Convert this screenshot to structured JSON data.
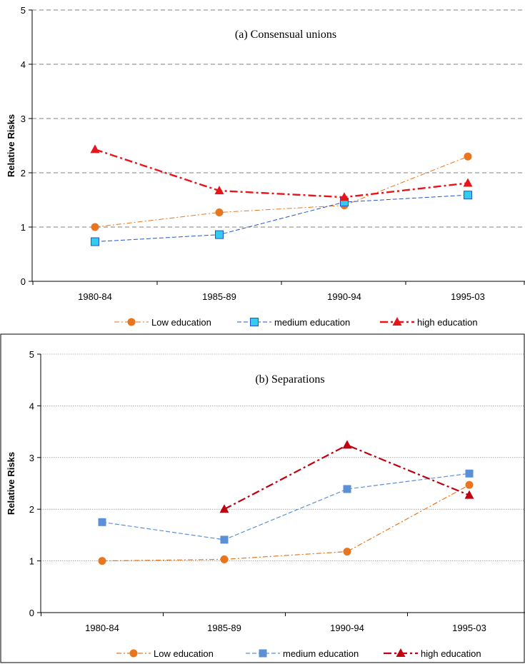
{
  "chart_data": [
    {
      "type": "line",
      "title": "(a) Consensual unions",
      "xlabel": "",
      "ylabel": "Relative Risks",
      "categories": [
        "1980-84",
        "1985-89",
        "1990-94",
        "1995-03"
      ],
      "ylim": [
        0,
        5
      ],
      "yticks": [
        "0",
        "1",
        "2",
        "3",
        "4",
        "5"
      ],
      "grid": true,
      "legend_position": "bottom",
      "series": [
        {
          "name": "Low education",
          "values": [
            1.0,
            1.27,
            1.4,
            2.3
          ],
          "color": "#E8761E",
          "marker": "circle",
          "dash": "dash-dot"
        },
        {
          "name": "medium education",
          "values": [
            0.73,
            0.86,
            1.46,
            1.59
          ],
          "color": "#2255CC",
          "marker": "square",
          "marker_fill": "#33CCEE",
          "dash": "dashed"
        },
        {
          "name": "high education",
          "values": [
            2.43,
            1.67,
            1.55,
            1.81
          ],
          "color": "#E8141A",
          "marker": "triangle",
          "dash": "long-dash-dot"
        }
      ]
    },
    {
      "type": "line",
      "title": "(b) Separations",
      "xlabel": "",
      "ylabel": "Relative Risks",
      "categories": [
        "1980-84",
        "1985-89",
        "1990-94",
        "1995-03"
      ],
      "ylim": [
        0,
        5
      ],
      "yticks": [
        "0",
        "1",
        "2",
        "3",
        "4",
        "5"
      ],
      "grid": true,
      "legend_position": "bottom",
      "series": [
        {
          "name": "Low education",
          "values": [
            1.0,
            1.03,
            1.18,
            2.47
          ],
          "color": "#E8761E",
          "marker": "circle",
          "dash": "dash-dot"
        },
        {
          "name": "medium education",
          "values": [
            1.75,
            1.41,
            2.39,
            2.69
          ],
          "color": "#5B8FD6",
          "marker": "square",
          "dash": "dashed"
        },
        {
          "name": "high education",
          "values": [
            null,
            2.0,
            3.24,
            2.27
          ],
          "color": "#C00010",
          "marker": "triangle",
          "dash": "long-dash-dot"
        }
      ]
    }
  ]
}
